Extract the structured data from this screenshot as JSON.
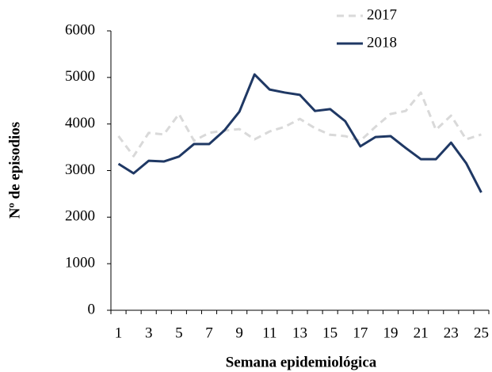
{
  "chart_data": {
    "type": "line",
    "x_label": "Semana epidemiológica",
    "y_label": "Nº de episodios",
    "categories": [
      "1",
      null,
      "3",
      null,
      "5",
      null,
      "7",
      null,
      "9",
      null,
      "11",
      null,
      "13",
      null,
      "15",
      null,
      "17",
      null,
      "19",
      null,
      "21",
      null,
      "23",
      null,
      "25"
    ],
    "series": [
      {
        "name": "2017",
        "color": "#d9d9d9",
        "dash": true,
        "values": [
          3740,
          3310,
          3810,
          3775,
          4215,
          3640,
          3810,
          3860,
          3890,
          3670,
          3840,
          3940,
          4110,
          3910,
          3770,
          3740,
          3640,
          3940,
          4215,
          4280,
          4675,
          3875,
          4180,
          3670,
          3775
        ]
      },
      {
        "name": "2018",
        "color": "#1f3864",
        "dash": false,
        "values": [
          3145,
          2940,
          3210,
          3195,
          3300,
          3570,
          3570,
          3860,
          4265,
          5065,
          4740,
          4675,
          4625,
          4280,
          4320,
          4060,
          3520,
          3720,
          3740,
          3485,
          3245,
          3245,
          3600,
          3160,
          2530
        ]
      }
    ],
    "ylim": [
      0,
      6000
    ],
    "yticks": [
      0,
      1000,
      2000,
      3000,
      4000,
      5000,
      6000
    ],
    "grid": false,
    "legend": "top-right"
  }
}
